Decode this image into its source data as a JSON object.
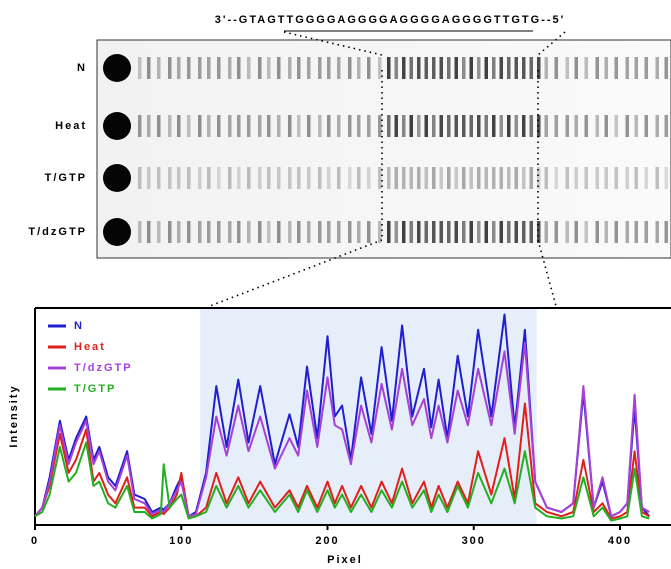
{
  "gel": {
    "sequence": "3'--GTAGTTGGGGAGGGGAGGGGAGGGGTTGTG--5'",
    "lanes": [
      "N",
      "Heat",
      "T/GTP",
      "T/dzGTP"
    ]
  },
  "chart_data": {
    "type": "line",
    "xlabel": "Pixel",
    "ylabel": "Intensity",
    "xlim": [
      0,
      420
    ],
    "xticks": [
      0,
      100,
      200,
      300,
      400
    ],
    "ylim": [
      0,
      100
    ],
    "legend": "top-left",
    "highlight": {
      "range": [
        113,
        343
      ],
      "color": "#e6eef9"
    },
    "x": [
      0,
      5,
      10,
      17,
      23,
      28,
      35,
      40,
      44,
      50,
      55,
      63,
      68,
      75,
      80,
      86,
      88,
      92,
      97,
      100,
      105,
      110,
      117,
      124,
      131,
      139,
      146,
      154,
      164,
      174,
      180,
      186,
      193,
      200,
      205,
      210,
      216,
      223,
      230,
      237,
      244,
      251,
      258,
      266,
      271,
      276,
      282,
      289,
      296,
      303,
      312,
      321,
      328,
      335,
      342,
      350,
      360,
      368,
      375,
      382,
      388,
      394,
      400,
      405,
      410,
      415,
      420
    ],
    "series": [
      {
        "name": "N",
        "color": "#1f1fd0",
        "values": [
          4,
          8,
          22,
          48,
          30,
          40,
          50,
          30,
          36,
          22,
          18,
          34,
          14,
          12,
          6,
          8,
          7,
          10,
          18,
          22,
          4,
          6,
          24,
          64,
          36,
          67,
          38,
          64,
          28,
          51,
          36,
          73,
          40,
          87,
          50,
          55,
          30,
          68,
          42,
          82,
          48,
          92,
          50,
          72,
          45,
          67,
          40,
          78,
          50,
          90,
          50,
          97,
          45,
          90,
          20,
          8,
          6,
          10,
          61,
          8,
          20,
          4,
          6,
          10,
          54,
          8,
          4
        ]
      },
      {
        "name": "Heat",
        "color": "#e0201c",
        "values": [
          4,
          8,
          18,
          42,
          24,
          30,
          44,
          20,
          24,
          14,
          10,
          22,
          8,
          8,
          4,
          6,
          5,
          8,
          14,
          24,
          4,
          4,
          8,
          24,
          10,
          22,
          10,
          20,
          8,
          16,
          8,
          18,
          8,
          20,
          10,
          18,
          8,
          18,
          8,
          20,
          10,
          26,
          10,
          20,
          8,
          18,
          8,
          20,
          10,
          34,
          14,
          40,
          12,
          56,
          10,
          6,
          4,
          6,
          30,
          6,
          10,
          3,
          4,
          6,
          34,
          6,
          4
        ]
      },
      {
        "name": "T/dzGTP",
        "color": "#a640d8",
        "values": [
          4,
          8,
          20,
          46,
          28,
          38,
          48,
          28,
          34,
          20,
          16,
          32,
          12,
          10,
          5,
          7,
          6,
          10,
          16,
          20,
          4,
          5,
          22,
          50,
          32,
          55,
          34,
          50,
          26,
          40,
          32,
          62,
          36,
          68,
          46,
          44,
          28,
          55,
          38,
          65,
          44,
          72,
          46,
          58,
          40,
          55,
          38,
          62,
          46,
          72,
          46,
          80,
          42,
          84,
          20,
          8,
          6,
          10,
          64,
          8,
          22,
          4,
          6,
          10,
          60,
          8,
          6
        ]
      },
      {
        "name": "T/GTP",
        "color": "#22b022",
        "values": [
          4,
          6,
          14,
          36,
          20,
          24,
          38,
          18,
          20,
          10,
          8,
          18,
          6,
          6,
          3,
          5,
          28,
          8,
          12,
          14,
          3,
          4,
          6,
          18,
          8,
          18,
          8,
          16,
          6,
          14,
          6,
          16,
          6,
          16,
          8,
          14,
          6,
          14,
          6,
          16,
          8,
          20,
          8,
          16,
          6,
          14,
          6,
          18,
          8,
          24,
          10,
          26,
          10,
          34,
          8,
          4,
          3,
          4,
          22,
          4,
          8,
          2,
          3,
          4,
          26,
          4,
          3
        ]
      }
    ]
  }
}
